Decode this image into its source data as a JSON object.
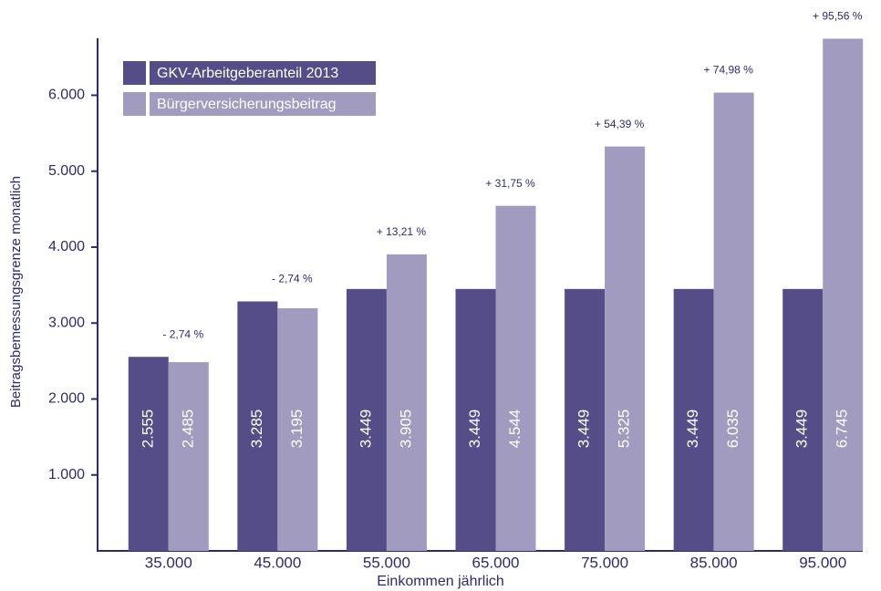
{
  "chart_data": {
    "type": "bar",
    "xlabel": "Einkommen jährlich",
    "ylabel": "Beitragsbemessungsgrenze monatlich",
    "categories": [
      "35.000",
      "45.000",
      "55.000",
      "65.000",
      "75.000",
      "85.000",
      "95.000"
    ],
    "series": [
      {
        "name": "GKV-Arbeitgeberanteil 2013",
        "color": "#554d87",
        "values": [
          2555,
          3285,
          3449,
          3449,
          3449,
          3449,
          3449
        ],
        "value_labels": [
          "2.555",
          "3.285",
          "3.449",
          "3.449",
          "3.449",
          "3.449",
          "3.449"
        ]
      },
      {
        "name": "Bürgerversicherungsbeitrag",
        "color": "#a09bbf",
        "values": [
          2485,
          3195,
          3905,
          4544,
          5325,
          6035,
          6745
        ],
        "value_labels": [
          "2.485",
          "3.195",
          "3.905",
          "4.544",
          "5.325",
          "6.035",
          "6.745"
        ]
      }
    ],
    "annotations": [
      "- 2,74 %",
      "- 2,74 %",
      "+ 13,21 %",
      "+ 31,75 %",
      "+ 54,39 %",
      "+ 74,98 %",
      "+ 95,56 %"
    ],
    "ylim": [
      0,
      6750
    ],
    "yticks": [
      {
        "value": 1000,
        "label": "1.000"
      },
      {
        "value": 2000,
        "label": "2.000"
      },
      {
        "value": 3000,
        "label": "3.000"
      },
      {
        "value": 4000,
        "label": "4.000"
      },
      {
        "value": 5000,
        "label": "5.000"
      },
      {
        "value": 6000,
        "label": "6.000"
      }
    ],
    "legend": "upper left"
  }
}
